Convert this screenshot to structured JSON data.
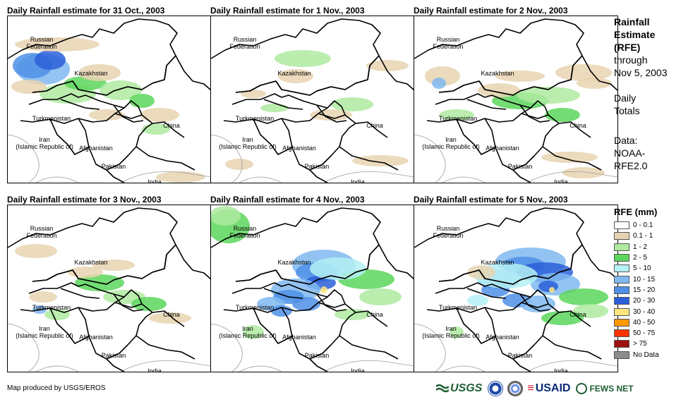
{
  "panels": [
    {
      "title": "Daily Rainfall estimate for 31 Oct., 2003",
      "rain_intensity": "moderate-north"
    },
    {
      "title": "Daily Rainfall estimate for 1 Nov., 2003",
      "rain_intensity": "light"
    },
    {
      "title": "Daily Rainfall estimate for 2 Nov., 2003",
      "rain_intensity": "moderate-center"
    },
    {
      "title": "Daily Rainfall estimate for 3 Nov., 2003",
      "rain_intensity": "light-center"
    },
    {
      "title": "Daily Rainfall estimate for 4 Nov., 2003",
      "rain_intensity": "heavy-center"
    },
    {
      "title": "Daily Rainfall estimate for 5 Nov., 2003",
      "rain_intensity": "heavy-east"
    }
  ],
  "map_labels": {
    "russia": "Russian\nFederation",
    "kazakhstan": "Kazakhstan",
    "turkmenistan": "Turkmenistan",
    "iran": "Iran\n(Islamic Republic of)",
    "afghanistan": "Afghanistan",
    "pakistan": "Pakistan",
    "india": "India",
    "china": "China"
  },
  "sidebar": {
    "title_line1": "Rainfall",
    "title_line2": "Estimate",
    "title_line3": "(RFE)",
    "through": "through",
    "date": "Nov 5, 2003",
    "daily1": "Daily",
    "daily2": "Totals",
    "data1": "Data:",
    "data2": "NOAA-",
    "data3": "RFE2.0"
  },
  "legend": {
    "title": "RFE (mm)",
    "items": [
      {
        "label": "0 - 0.1",
        "color": "#ffffff"
      },
      {
        "label": "0.1 - 1",
        "color": "#e8d3b0"
      },
      {
        "label": "1 - 2",
        "color": "#aeeaa0"
      },
      {
        "label": "2 - 5",
        "color": "#5cd65c"
      },
      {
        "label": "5 - 10",
        "color": "#b4f0f5"
      },
      {
        "label": "10 - 15",
        "color": "#7fb8f0"
      },
      {
        "label": "15 - 20",
        "color": "#4f8fe6"
      },
      {
        "label": "20 - 30",
        "color": "#2b5fd9"
      },
      {
        "label": "30 - 40",
        "color": "#ffe680"
      },
      {
        "label": "40 - 50",
        "color": "#ff9900"
      },
      {
        "label": "50 - 75",
        "color": "#ff3300"
      },
      {
        "label": "> 75",
        "color": "#a01010"
      },
      {
        "label": "No Data",
        "color": "#8c8c8c"
      }
    ]
  },
  "footer": {
    "credit": "Map produced by USGS/EROS",
    "usgs": "USGS",
    "usaid": "USAID",
    "fews": "FEWS NET"
  }
}
